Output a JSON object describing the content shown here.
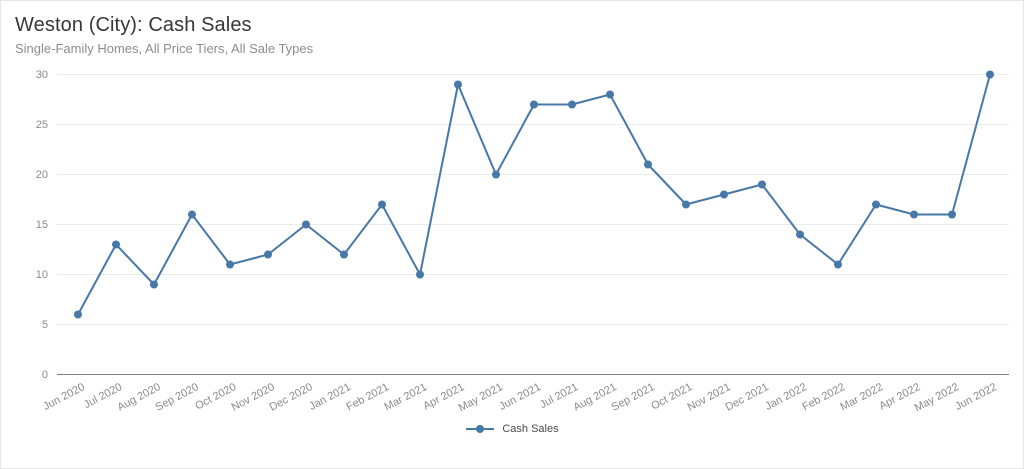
{
  "header": {
    "title": "Weston (City): Cash Sales",
    "subtitle": "Single-Family Homes, All Price Tiers, All Sale Types"
  },
  "chart_data": {
    "type": "line",
    "title": "Weston (City): Cash Sales",
    "subtitle": "Single-Family Homes, All Price Tiers, All Sale Types",
    "categories": [
      "Jun 2020",
      "Jul 2020",
      "Aug 2020",
      "Sep 2020",
      "Oct 2020",
      "Nov 2020",
      "Dec 2020",
      "Jan 2021",
      "Feb 2021",
      "Mar 2021",
      "Apr 2021",
      "May 2021",
      "Jun 2021",
      "Jul 2021",
      "Aug 2021",
      "Sep 2021",
      "Oct 2021",
      "Nov 2021",
      "Dec 2021",
      "Jan 2022",
      "Feb 2022",
      "Mar 2022",
      "Apr 2022",
      "May 2022",
      "Jun 2022"
    ],
    "series": [
      {
        "name": "Cash Sales",
        "values": [
          6,
          13,
          9,
          16,
          11,
          12,
          15,
          12,
          17,
          10,
          29,
          20,
          27,
          27,
          28,
          21,
          17,
          18,
          19,
          14,
          11,
          17,
          16,
          16,
          30
        ],
        "color": "#4878a8"
      }
    ],
    "xlabel": "",
    "ylabel": "",
    "ylim": [
      0,
      30
    ],
    "yticks": [
      0,
      5,
      10,
      15,
      20,
      25,
      30
    ],
    "grid": "horizontal",
    "legend_position": "bottom-center"
  },
  "legend": {
    "items": [
      {
        "label": "Cash Sales",
        "color": "#4878a8",
        "marker": "line-dot-icon"
      }
    ]
  },
  "colors": {
    "line": "#4878a8",
    "grid": "#ebebeb",
    "axis_line": "#808080",
    "title": "#373737",
    "subtitle": "#8d8d8d",
    "tick_label": "#8a8a8a",
    "card_border": "#e6e6e6",
    "background": "#ffffff"
  }
}
